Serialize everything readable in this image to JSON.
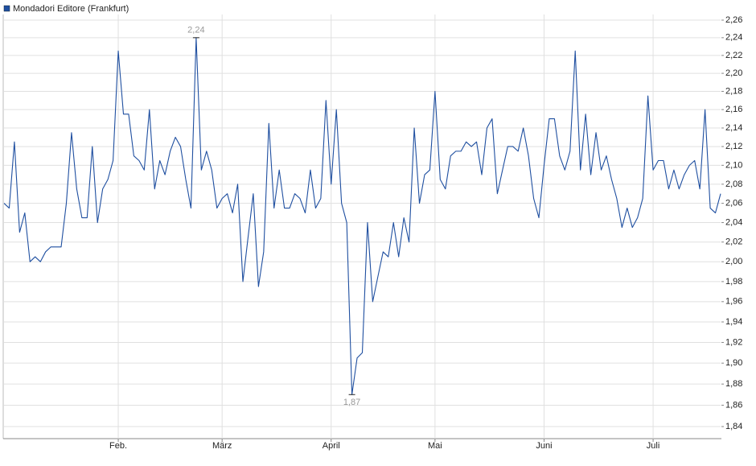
{
  "chart_data": {
    "type": "line",
    "series": [
      {
        "name": "Mondadori Editore (Frankfurt)",
        "color": "#1f4fa0",
        "values": [
          2.06,
          2.055,
          2.125,
          2.03,
          2.05,
          2.0,
          2.005,
          2.0,
          2.01,
          2.015,
          2.015,
          2.015,
          2.06,
          2.135,
          2.075,
          2.045,
          2.045,
          2.12,
          2.04,
          2.075,
          2.085,
          2.105,
          2.225,
          2.155,
          2.155,
          2.11,
          2.105,
          2.095,
          2.16,
          2.075,
          2.105,
          2.09,
          2.115,
          2.13,
          2.12,
          2.085,
          2.055,
          2.24,
          2.095,
          2.115,
          2.095,
          2.055,
          2.065,
          2.07,
          2.05,
          2.08,
          1.98,
          2.025,
          2.07,
          1.975,
          2.01,
          2.145,
          2.055,
          2.095,
          2.055,
          2.055,
          2.07,
          2.065,
          2.05,
          2.095,
          2.055,
          2.065,
          2.17,
          2.08,
          2.16,
          2.06,
          2.04,
          1.87,
          1.905,
          1.91,
          2.04,
          1.96,
          1.985,
          2.01,
          2.005,
          2.04,
          2.005,
          2.045,
          2.02,
          2.14,
          2.06,
          2.09,
          2.095,
          2.18,
          2.085,
          2.075,
          2.11,
          2.115,
          2.115,
          2.125,
          2.12,
          2.125,
          2.09,
          2.14,
          2.15,
          2.07,
          2.095,
          2.12,
          2.12,
          2.115,
          2.14,
          2.11,
          2.065,
          2.045,
          2.1,
          2.15,
          2.15,
          2.11,
          2.095,
          2.115,
          2.225,
          2.095,
          2.155,
          2.09,
          2.135,
          2.095,
          2.11,
          2.085,
          2.065,
          2.035,
          2.055,
          2.035,
          2.045,
          2.065,
          2.175,
          2.095,
          2.105,
          2.105,
          2.075,
          2.095,
          2.075,
          2.09,
          2.1,
          2.105,
          2.075,
          2.16,
          2.055,
          2.05,
          2.07
        ]
      }
    ],
    "xlim": [
      0,
      138
    ],
    "xticks": [
      {
        "value": 22,
        "label": "Feb."
      },
      {
        "value": 42,
        "label": "März"
      },
      {
        "value": 63,
        "label": "April"
      },
      {
        "value": 83,
        "label": "Mai"
      },
      {
        "value": 104,
        "label": "Juni"
      },
      {
        "value": 125,
        "label": "Juli"
      }
    ],
    "ylim": [
      1.84,
      2.26
    ],
    "log_scale": true,
    "yticks": [
      {
        "value": 1.84,
        "label": "1,84"
      },
      {
        "value": 1.86,
        "label": "1,86"
      },
      {
        "value": 1.88,
        "label": "1,88"
      },
      {
        "value": 1.9,
        "label": "1,90"
      },
      {
        "value": 1.92,
        "label": "1,92"
      },
      {
        "value": 1.94,
        "label": "1,94"
      },
      {
        "value": 1.96,
        "label": "1,96"
      },
      {
        "value": 1.98,
        "label": "1,98"
      },
      {
        "value": 2.0,
        "label": "2,00"
      },
      {
        "value": 2.02,
        "label": "2,02"
      },
      {
        "value": 2.04,
        "label": "2,04"
      },
      {
        "value": 2.06,
        "label": "2,06"
      },
      {
        "value": 2.08,
        "label": "2,08"
      },
      {
        "value": 2.1,
        "label": "2,10"
      },
      {
        "value": 2.12,
        "label": "2,12"
      },
      {
        "value": 2.14,
        "label": "2,14"
      },
      {
        "value": 2.16,
        "label": "2,16"
      },
      {
        "value": 2.18,
        "label": "2,18"
      },
      {
        "value": 2.2,
        "label": "2,20"
      },
      {
        "value": 2.22,
        "label": "2,22"
      },
      {
        "value": 2.24,
        "label": "2,24"
      },
      {
        "value": 2.26,
        "label": "2,26"
      }
    ],
    "annotations": [
      {
        "value": 2.24,
        "label": "2,24"
      },
      {
        "value": 1.87,
        "label": "1,87"
      }
    ],
    "grid": true
  }
}
